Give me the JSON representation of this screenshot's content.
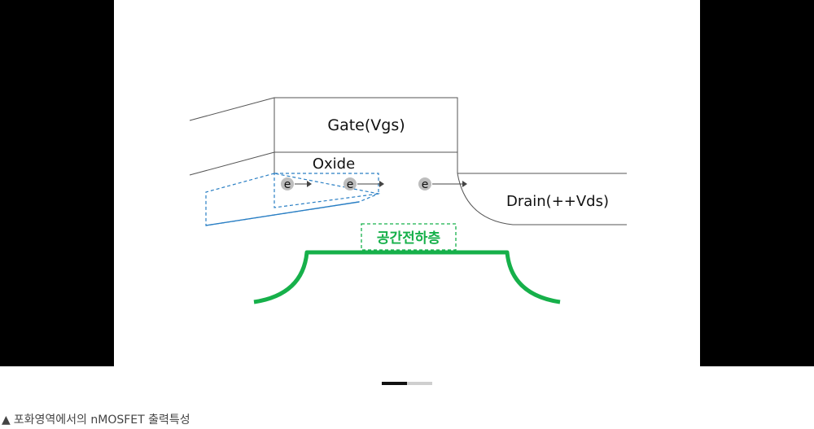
{
  "diagram": {
    "gate_label": "Gate(Vgs)",
    "oxide_label": "Oxide",
    "drain_label": "Drain(++Vds)",
    "electron_label": "e",
    "depletion_label": "공간전하층",
    "colors": {
      "line": "#555555",
      "channel_dashed": "#2a7fc4",
      "depletion_green": "#16b04a",
      "electron_fill": "#bdbdbd"
    }
  },
  "carousel": {
    "pages": 2,
    "active_index": 0
  },
  "caption": {
    "marker": "▲",
    "text": "포화영역에서의 nMOSFET 출력특성"
  }
}
